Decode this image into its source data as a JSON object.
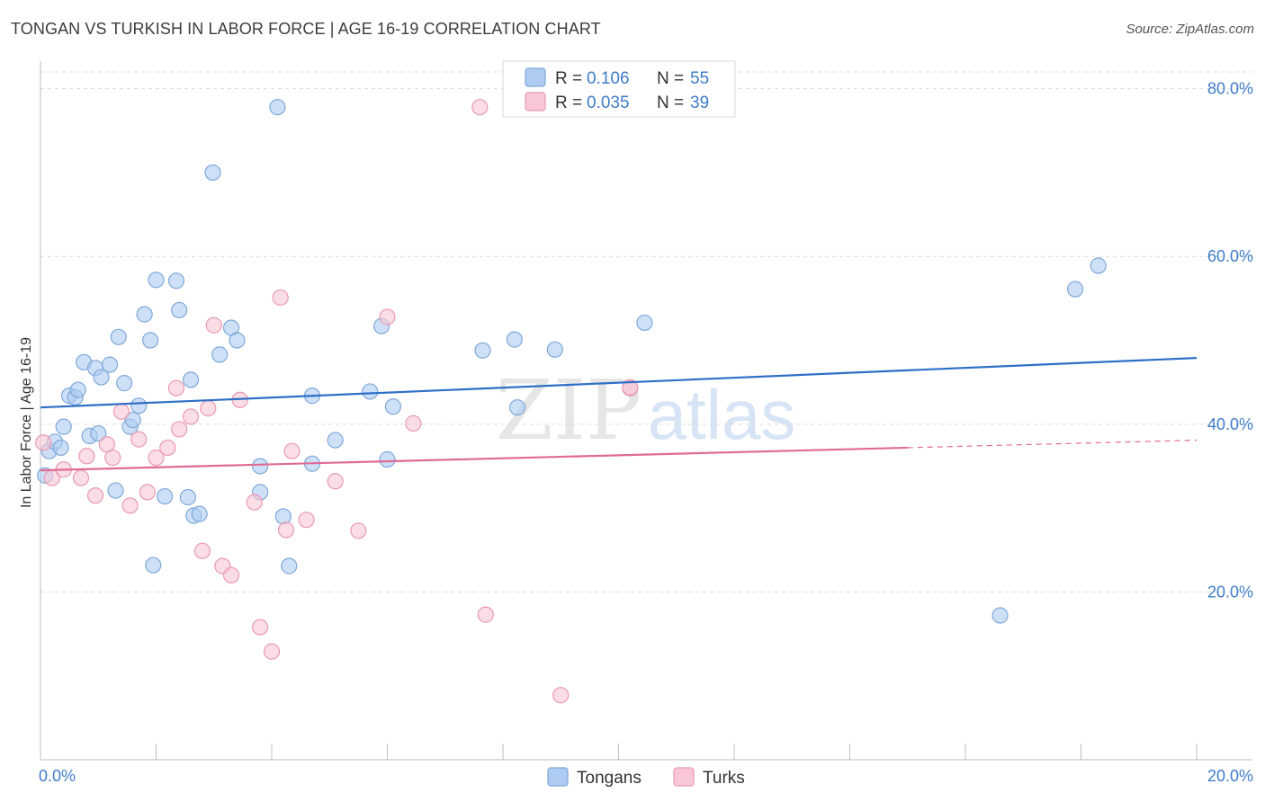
{
  "title": "TONGAN VS TURKISH IN LABOR FORCE | AGE 16-19 CORRELATION CHART",
  "source": "Source: ZipAtlas.com",
  "watermark": {
    "zip": "ZIP",
    "atlas": "atlas"
  },
  "colors": {
    "tongans_fill": "#aecbf1",
    "tongans_stroke": "#7fa8d8",
    "tongans_line": "#2e6fc7",
    "turks_fill": "#f8c6d6",
    "turks_stroke": "#e89ab4",
    "turks_line": "#e06b95",
    "tick_label": "#3f7cc9",
    "grid": "#dcdcdc"
  },
  "chart_data": {
    "type": "scatter",
    "title": "TONGAN VS TURKISH IN LABOR FORCE | AGE 16-19 CORRELATION CHART",
    "ylabel": "In Labor Force | Age 16-19",
    "xlabel": "",
    "xlim": [
      0,
      20
    ],
    "ylim": [
      0,
      82
    ],
    "x_ticks": [
      0,
      20
    ],
    "x_tick_labels": [
      "0.0%",
      "20.0%"
    ],
    "y_ticks": [
      20,
      40,
      60,
      80
    ],
    "y_tick_labels": [
      "20.0%",
      "40.0%",
      "60.0%",
      "80.0%"
    ],
    "legend_stats": [
      {
        "r_label": "R =",
        "r_value": "0.106",
        "n_label": "N =",
        "n_value": "55"
      },
      {
        "r_label": "R =",
        "r_value": "0.035",
        "n_label": "N =",
        "n_value": "39"
      }
    ],
    "series": [
      {
        "name": "Tongans",
        "trend": {
          "x0": 0,
          "y0": 42.0,
          "x1": 20,
          "y1": 47.9
        },
        "points": [
          [
            0.08,
            33.9
          ],
          [
            0.15,
            36.8
          ],
          [
            0.25,
            37.9
          ],
          [
            0.35,
            37.2
          ],
          [
            0.4,
            39.7
          ],
          [
            0.5,
            43.4
          ],
          [
            0.6,
            43.2
          ],
          [
            0.65,
            44.1
          ],
          [
            0.75,
            47.4
          ],
          [
            0.85,
            38.6
          ],
          [
            0.95,
            46.7
          ],
          [
            1.0,
            38.9
          ],
          [
            1.05,
            45.6
          ],
          [
            1.2,
            47.1
          ],
          [
            1.3,
            32.1
          ],
          [
            1.35,
            50.4
          ],
          [
            1.45,
            44.9
          ],
          [
            1.55,
            39.7
          ],
          [
            1.6,
            40.5
          ],
          [
            1.7,
            42.2
          ],
          [
            1.8,
            53.1
          ],
          [
            1.9,
            50.0
          ],
          [
            1.95,
            23.2
          ],
          [
            2.0,
            57.2
          ],
          [
            2.15,
            31.4
          ],
          [
            2.35,
            57.1
          ],
          [
            2.4,
            53.6
          ],
          [
            2.55,
            31.3
          ],
          [
            2.6,
            45.3
          ],
          [
            2.65,
            29.1
          ],
          [
            2.75,
            29.3
          ],
          [
            2.98,
            70.0
          ],
          [
            3.1,
            48.3
          ],
          [
            3.3,
            51.5
          ],
          [
            3.4,
            50.0
          ],
          [
            3.8,
            35.0
          ],
          [
            3.8,
            31.9
          ],
          [
            4.1,
            77.8
          ],
          [
            4.2,
            29.0
          ],
          [
            4.3,
            23.1
          ],
          [
            4.7,
            35.3
          ],
          [
            4.7,
            43.4
          ],
          [
            5.1,
            38.1
          ],
          [
            5.7,
            43.9
          ],
          [
            5.9,
            51.7
          ],
          [
            6.0,
            35.8
          ],
          [
            6.1,
            42.1
          ],
          [
            7.65,
            48.8
          ],
          [
            8.2,
            50.1
          ],
          [
            8.25,
            42.0
          ],
          [
            8.9,
            48.9
          ],
          [
            10.45,
            52.1
          ],
          [
            16.6,
            17.2
          ],
          [
            17.9,
            56.1
          ],
          [
            18.3,
            58.9
          ]
        ]
      },
      {
        "name": "Turks",
        "trend": {
          "x0": 0,
          "y0": 34.5,
          "x1": 15.0,
          "y1": 37.2,
          "dash_x1": 20,
          "dash_y1": 38.1
        },
        "points": [
          [
            0.05,
            37.8
          ],
          [
            0.2,
            33.6
          ],
          [
            0.4,
            34.6
          ],
          [
            0.7,
            33.6
          ],
          [
            0.8,
            36.2
          ],
          [
            0.95,
            31.5
          ],
          [
            1.15,
            37.6
          ],
          [
            1.25,
            36.0
          ],
          [
            1.4,
            41.5
          ],
          [
            1.55,
            30.3
          ],
          [
            1.7,
            38.2
          ],
          [
            1.85,
            31.9
          ],
          [
            2.0,
            36.0
          ],
          [
            2.2,
            37.2
          ],
          [
            2.35,
            44.3
          ],
          [
            2.4,
            39.4
          ],
          [
            2.6,
            40.9
          ],
          [
            2.8,
            24.9
          ],
          [
            2.9,
            41.9
          ],
          [
            3.0,
            51.8
          ],
          [
            3.15,
            23.1
          ],
          [
            3.3,
            22.0
          ],
          [
            3.45,
            42.9
          ],
          [
            3.7,
            30.7
          ],
          [
            3.8,
            15.8
          ],
          [
            4.0,
            12.9
          ],
          [
            4.15,
            55.1
          ],
          [
            4.25,
            27.4
          ],
          [
            4.35,
            36.8
          ],
          [
            4.6,
            28.6
          ],
          [
            5.1,
            33.2
          ],
          [
            5.5,
            27.3
          ],
          [
            6.0,
            52.8
          ],
          [
            6.45,
            40.1
          ],
          [
            7.6,
            77.8
          ],
          [
            7.7,
            17.3
          ],
          [
            9.0,
            7.7
          ],
          [
            10.2,
            44.3
          ],
          [
            10.2,
            44.4
          ]
        ]
      }
    ]
  }
}
